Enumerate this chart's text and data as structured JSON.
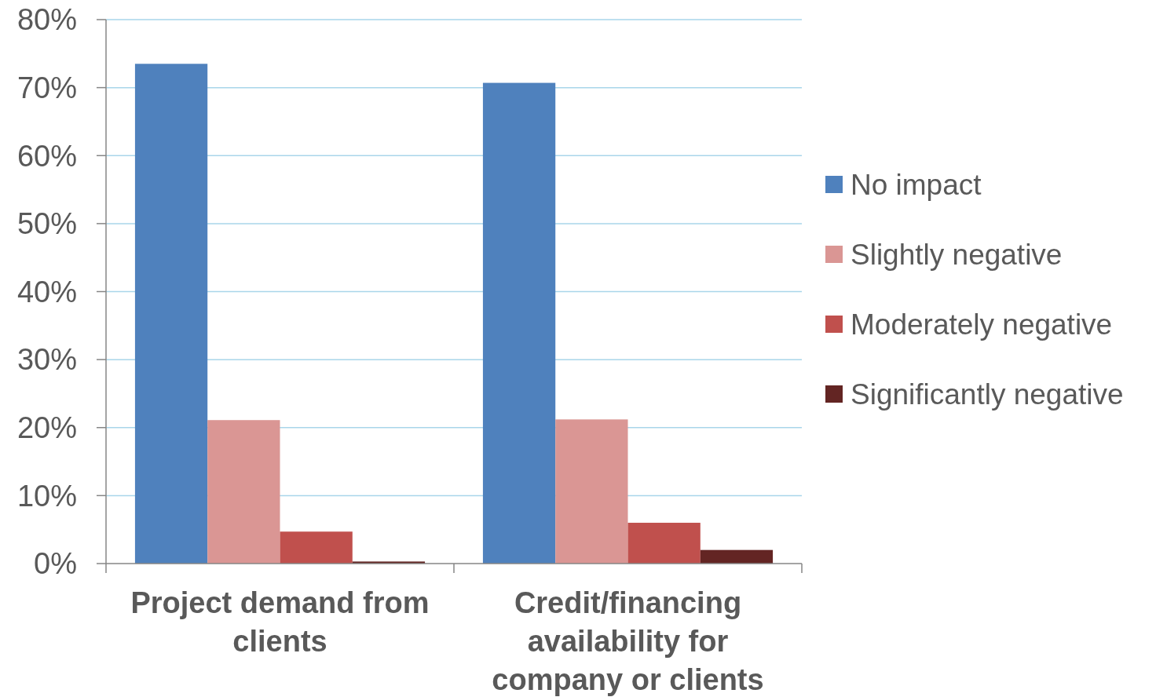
{
  "chart_data": {
    "type": "bar",
    "categories": [
      "Project demand from clients",
      "Credit/financing availability for company or clients"
    ],
    "series": [
      {
        "name": "No impact",
        "color": "#4f81bd",
        "values": [
          73.5,
          70.7
        ]
      },
      {
        "name": "Slightly negative",
        "color": "#da9694",
        "values": [
          21.1,
          21.2
        ]
      },
      {
        "name": "Moderately negative",
        "color": "#c0504d",
        "values": [
          4.7,
          6.0
        ]
      },
      {
        "name": "Significantly negative",
        "color": "#632523",
        "values": [
          0.3,
          2.0
        ]
      }
    ],
    "ylim": [
      0,
      80
    ],
    "yticks": [
      {
        "value": 0,
        "label": "0%"
      },
      {
        "value": 10,
        "label": "10%"
      },
      {
        "value": 20,
        "label": "20%"
      },
      {
        "value": 30,
        "label": "30%"
      },
      {
        "value": 40,
        "label": "40%"
      },
      {
        "value": 50,
        "label": "50%"
      },
      {
        "value": 60,
        "label": "60%"
      },
      {
        "value": 70,
        "label": "70%"
      },
      {
        "value": 80,
        "label": "80%"
      }
    ],
    "grid": "y",
    "legend": "right"
  }
}
